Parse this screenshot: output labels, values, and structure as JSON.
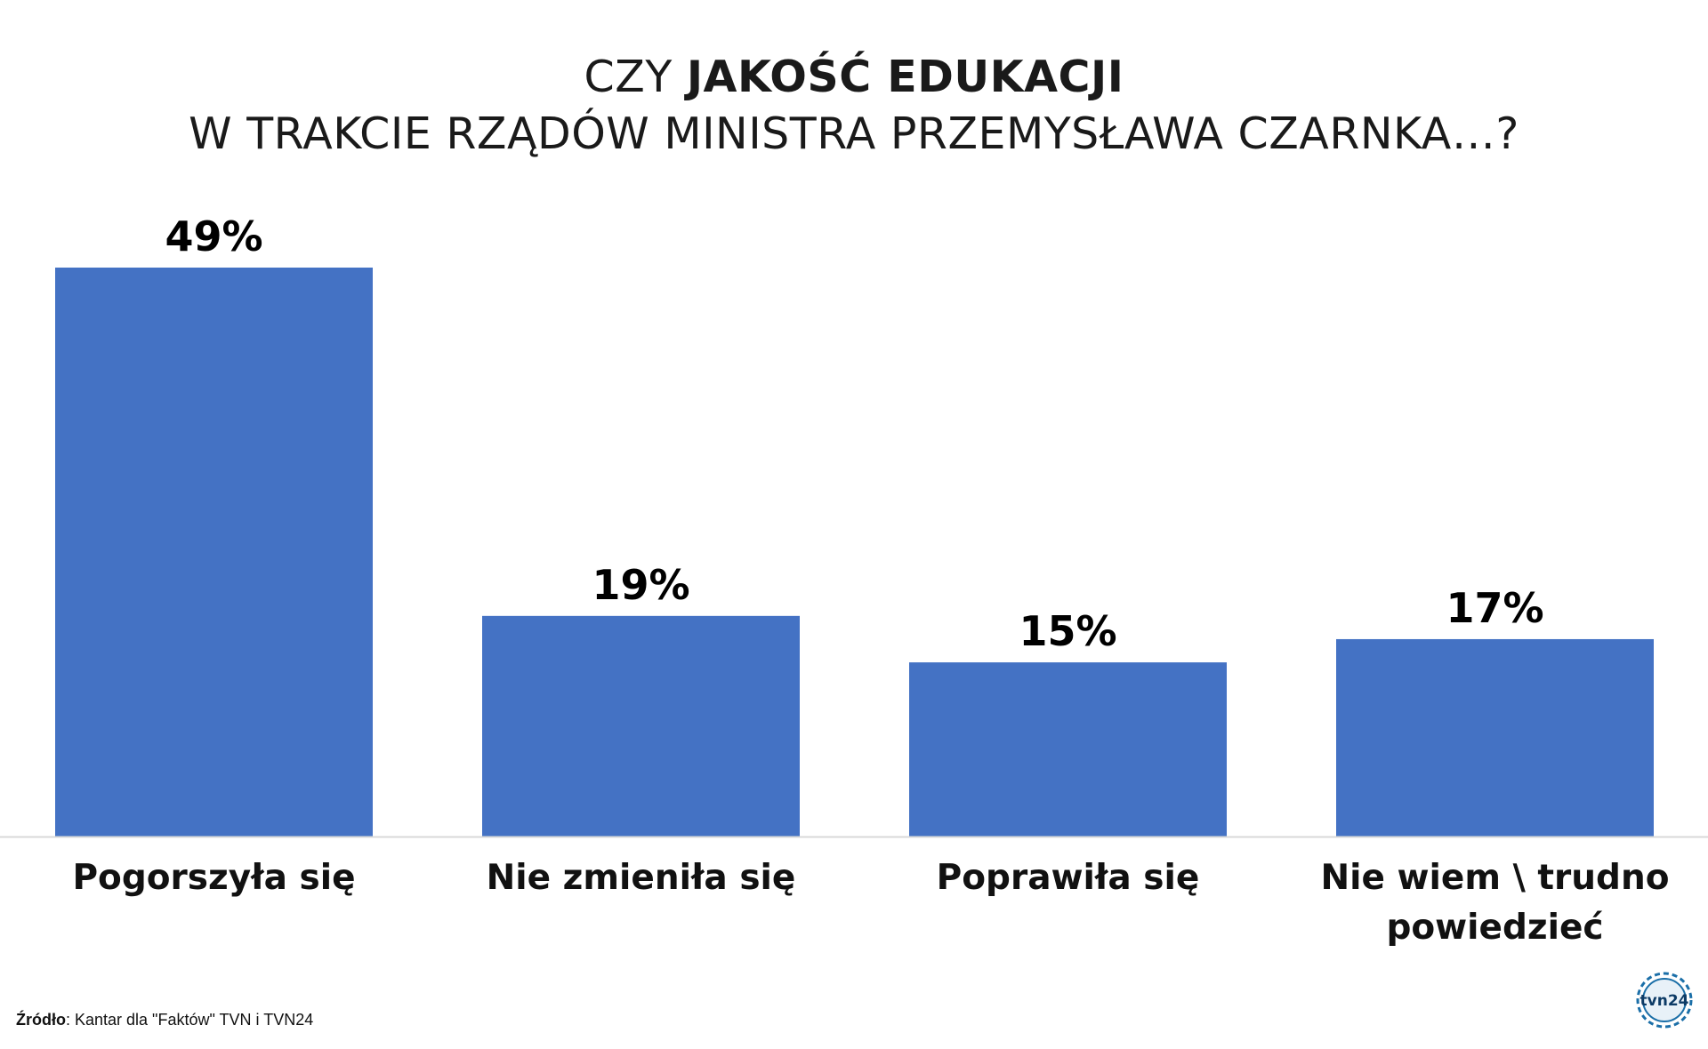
{
  "header": {
    "line1_prefix": "CZY ",
    "line1_emphasis": "JAKOŚĆ EDUKACJI",
    "line2": "W TRAKCIE RZĄDÓW MINISTRA PRZEMYSŁAWA CZARNKA…?"
  },
  "chart_data": {
    "type": "bar",
    "title": "CZY JAKOŚĆ EDUKACJI W TRAKCIE RZĄDÓW MINISTRA PRZEMYSŁAWA CZARNKA…?",
    "categories": [
      "Pogorszyła się",
      "Nie zmieniła się",
      "Poprawiła się",
      "Nie wiem \\ trudno powiedzieć"
    ],
    "category_lines": [
      [
        "Pogorszyła się"
      ],
      [
        "Nie zmieniła się"
      ],
      [
        "Poprawiła się"
      ],
      [
        "Nie wiem \\ trudno",
        "powiedzieć"
      ]
    ],
    "values": [
      49,
      19,
      15,
      17
    ],
    "value_labels": [
      "49%",
      "19%",
      "15%",
      "17%"
    ],
    "ylim": [
      0,
      49
    ],
    "grid": false,
    "bar_color": "#4472c4",
    "axis_color": "#d9d9d9"
  },
  "footer": {
    "source_key": "Źródło",
    "source_rest": ": Kantar dla \"Faktów\" TVN i TVN24",
    "logo_text": "tvn24"
  }
}
